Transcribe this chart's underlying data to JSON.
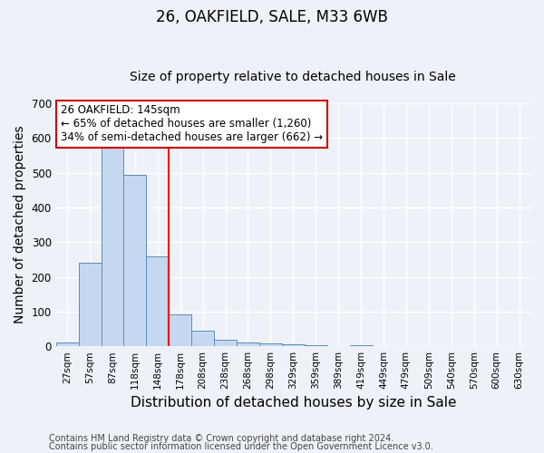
{
  "title": "26, OAKFIELD, SALE, M33 6WB",
  "subtitle": "Size of property relative to detached houses in Sale",
  "xlabel": "Distribution of detached houses by size in Sale",
  "ylabel": "Number of detached properties",
  "categories": [
    "27sqm",
    "57sqm",
    "87sqm",
    "118sqm",
    "148sqm",
    "178sqm",
    "208sqm",
    "238sqm",
    "268sqm",
    "298sqm",
    "329sqm",
    "359sqm",
    "389sqm",
    "419sqm",
    "449sqm",
    "479sqm",
    "509sqm",
    "540sqm",
    "570sqm",
    "600sqm",
    "630sqm"
  ],
  "values": [
    10,
    240,
    575,
    495,
    260,
    93,
    45,
    20,
    10,
    7,
    5,
    2,
    0,
    3,
    0,
    0,
    0,
    0,
    0,
    0,
    0
  ],
  "bar_color": "#c5d8f0",
  "bar_edge_color": "#5b8db8",
  "red_line_index": 4,
  "ylim": [
    0,
    700
  ],
  "yticks": [
    0,
    100,
    200,
    300,
    400,
    500,
    600,
    700
  ],
  "annotation_title": "26 OAKFIELD: 145sqm",
  "annotation_line1": "← 65% of detached houses are smaller (1,260)",
  "annotation_line2": "34% of semi-detached houses are larger (662) →",
  "annotation_box_color": "#ffffff",
  "annotation_box_edge_color": "#cc0000",
  "footnote1": "Contains HM Land Registry data © Crown copyright and database right 2024.",
  "footnote2": "Contains public sector information licensed under the Open Government Licence v3.0.",
  "background_color": "#eef2f8",
  "grid_color": "#ffffff",
  "title_fontsize": 12,
  "subtitle_fontsize": 10,
  "label_fontsize": 10,
  "tick_fontsize": 7.5,
  "annotation_fontsize": 8.5,
  "footnote_fontsize": 7
}
